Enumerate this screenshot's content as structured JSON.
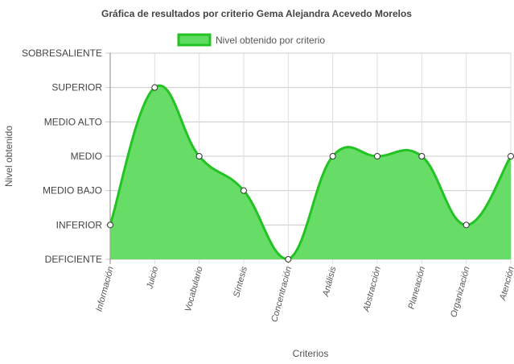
{
  "chart_data": {
    "type": "area",
    "title": "Gráfica de resultados por criterio Gema Alejandra Acevedo Morelos",
    "xlabel": "Criterios",
    "ylabel": "Nivel obtenido",
    "legend": {
      "position": "top",
      "label": "Nivel obtenido por criterio"
    },
    "categories": [
      "Información",
      "Juicio",
      "Vocabulario",
      "Síntesis",
      "Concentración",
      "Análisis",
      "Abstracción",
      "Planeación",
      "Organización",
      "Atención"
    ],
    "y_levels": [
      "DEFICIENTE",
      "INFERIOR",
      "MEDIO BAJO",
      "MEDIO",
      "MEDIO ALTO",
      "SUPERIOR",
      "SOBRESALIENTE"
    ],
    "ylim": [
      0,
      6
    ],
    "grid": true,
    "series": [
      {
        "name": "Nivel obtenido por criterio",
        "values": [
          1,
          5,
          3,
          2,
          0,
          3,
          3,
          3,
          1,
          3
        ],
        "labels": [
          "INFERIOR",
          "SUPERIOR",
          "MEDIO",
          "MEDIO BAJO",
          "DEFICIENTE",
          "MEDIO",
          "MEDIO",
          "MEDIO",
          "INFERIOR",
          "MEDIO"
        ]
      }
    ],
    "colors": {
      "fill": "#5fdb5f",
      "stroke": "#22c322",
      "grid": "#cccccc",
      "axis": "#888888"
    }
  }
}
